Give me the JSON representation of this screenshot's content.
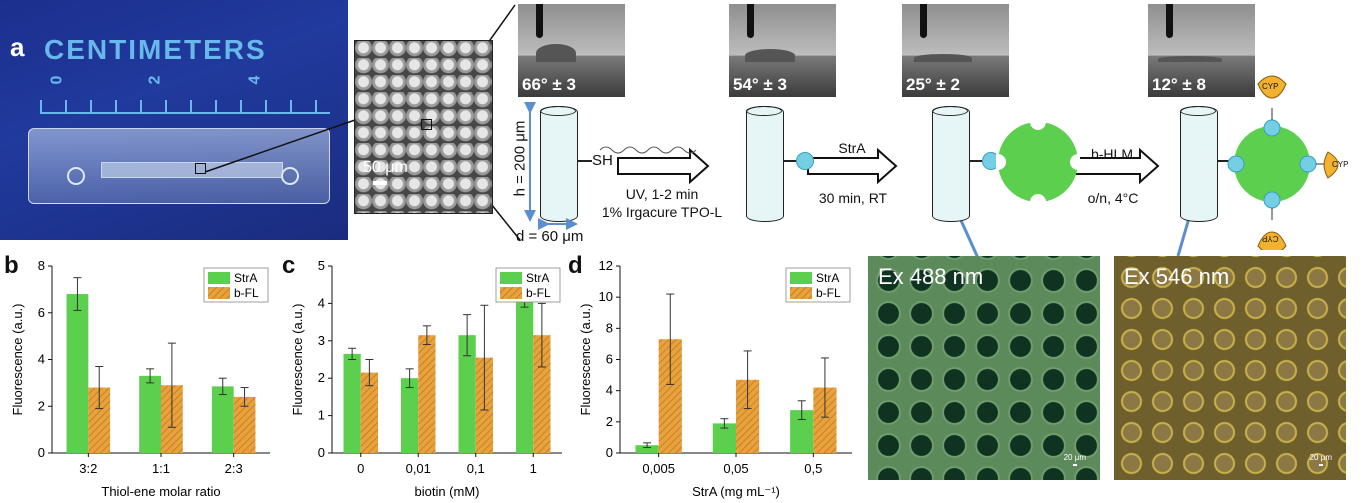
{
  "panel_a": {
    "letter": "a",
    "ruler_title": "CENTIMETERS",
    "ruler_ticks": [
      "0",
      "2",
      "4"
    ],
    "sem_scale": "50 μm",
    "pillar_h": "h = 200 μm",
    "pillar_d": "d = 60 μm",
    "sh_label": "SH",
    "contact_angles": [
      "66° ± 3",
      "54° ± 3",
      "25° ± 2",
      "12° ± 8"
    ],
    "step1": {
      "line1": "UV, 1-2 min",
      "line2": "1% Irgacure TPO-L"
    },
    "step2": {
      "line0": "StrA",
      "line1": "30 min, RT"
    },
    "step3": {
      "line0": "b-HLM",
      "line1": "o/n, 4°C"
    },
    "cyp_label": "CYP",
    "fluor_images": [
      {
        "label": "Ex 488 nm",
        "scale": "20 μm"
      },
      {
        "label": "Ex 546 nm",
        "scale": "20 μm"
      }
    ]
  },
  "panel_b": {
    "letter": "b"
  },
  "panel_c": {
    "letter": "c"
  },
  "panel_d": {
    "letter": "d"
  },
  "colors": {
    "strA": "#5ccf4e",
    "bFL": "#e9a23b",
    "hatch": "#b07524",
    "bead": "#74cfe5",
    "green_disc": "#5ccf4e",
    "cyp": "#f2b12e"
  },
  "chart_data": [
    {
      "type": "bar",
      "panel": "b",
      "categories": [
        "3:2",
        "1:1",
        "2:3"
      ],
      "series": [
        {
          "name": "StrA",
          "values": [
            6.8,
            3.3,
            2.85
          ],
          "errors": [
            0.7,
            0.3,
            0.35
          ]
        },
        {
          "name": "b-FL",
          "values": [
            2.8,
            2.9,
            2.4
          ],
          "errors": [
            0.9,
            1.8,
            0.4
          ]
        }
      ],
      "xlabel": "Thiol-ene molar ratio",
      "ylabel": "Fluorescence (a.u.)",
      "ylim": [
        0,
        8
      ],
      "yticks": [
        "0",
        "2",
        "4",
        "6",
        "8"
      ],
      "legend": "top-right"
    },
    {
      "type": "bar",
      "panel": "c",
      "categories": [
        "0",
        "0,01",
        "0,1",
        "1"
      ],
      "series": [
        {
          "name": "StrA",
          "values": [
            2.65,
            2.0,
            3.15,
            4.05
          ],
          "errors": [
            0.15,
            0.25,
            0.55,
            0.15
          ]
        },
        {
          "name": "b-FL",
          "values": [
            2.15,
            3.15,
            2.55,
            3.15
          ],
          "errors": [
            0.35,
            0.25,
            1.4,
            0.85
          ]
        }
      ],
      "xlabel": "biotin (mM)",
      "ylabel": "Fluorescence (a.u.)",
      "ylim": [
        0,
        5
      ],
      "yticks": [
        "0",
        "1",
        "2",
        "3",
        "4",
        "5"
      ],
      "legend": "top-right"
    },
    {
      "type": "bar",
      "panel": "d",
      "categories": [
        "0,005",
        "0,05",
        "0,5"
      ],
      "series": [
        {
          "name": "StrA",
          "values": [
            0.5,
            1.9,
            2.75
          ],
          "errors": [
            0.15,
            0.3,
            0.6
          ]
        },
        {
          "name": "b-FL",
          "values": [
            7.3,
            4.7,
            4.2
          ],
          "errors": [
            2.9,
            1.85,
            1.9
          ]
        }
      ],
      "xlabel": "StrA (mg mL⁻¹)",
      "ylabel": "Fluorescence (a.u.)",
      "ylim": [
        0,
        12
      ],
      "yticks": [
        "0",
        "2",
        "4",
        "6",
        "8",
        "10",
        "12"
      ],
      "legend": "top-right"
    }
  ]
}
